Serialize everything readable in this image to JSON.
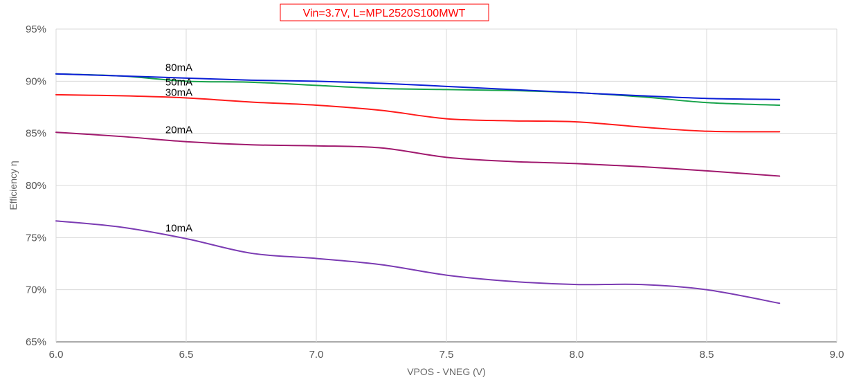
{
  "chart_data": {
    "type": "line",
    "title": "Vin=3.7V, L=MPL2520S100MWT",
    "title_color": "#ff0000",
    "xlabel": "VPOS - VNEG (V)",
    "ylabel": "Efficiency η",
    "xlim": [
      6.0,
      9.0
    ],
    "ylim": [
      65,
      95
    ],
    "x_ticks": [
      "6.0",
      "6.5",
      "7.0",
      "7.5",
      "8.0",
      "8.5",
      "9.0"
    ],
    "y_ticks": [
      "65%",
      "70%",
      "75%",
      "80%",
      "85%",
      "90%",
      "95%"
    ],
    "grid": true,
    "legend": "inline labels",
    "series": [
      {
        "name": "80mA",
        "color": "#0b1fd6",
        "x": [
          6.0,
          6.25,
          6.5,
          6.75,
          7.0,
          7.25,
          7.5,
          7.75,
          8.0,
          8.25,
          8.5,
          8.78
        ],
        "y": [
          90.7,
          90.5,
          90.3,
          90.1,
          90.0,
          89.8,
          89.5,
          89.2,
          88.9,
          88.6,
          88.35,
          88.25
        ]
      },
      {
        "name": "50mA",
        "color": "#17a34a",
        "x": [
          6.0,
          6.25,
          6.5,
          6.75,
          7.0,
          7.25,
          7.5,
          7.75,
          8.0,
          8.25,
          8.5,
          8.78
        ],
        "y": [
          90.7,
          90.5,
          90.0,
          89.9,
          89.6,
          89.3,
          89.2,
          89.1,
          88.9,
          88.5,
          87.95,
          87.7
        ]
      },
      {
        "name": "30mA",
        "color": "#ff1a1a",
        "x": [
          6.0,
          6.25,
          6.5,
          6.75,
          7.0,
          7.25,
          7.5,
          7.75,
          8.0,
          8.25,
          8.5,
          8.78
        ],
        "y": [
          88.7,
          88.6,
          88.4,
          88.0,
          87.7,
          87.2,
          86.4,
          86.2,
          86.1,
          85.6,
          85.2,
          85.15
        ]
      },
      {
        "name": "20mA",
        "color": "#a0196e",
        "x": [
          6.0,
          6.25,
          6.5,
          6.75,
          7.0,
          7.25,
          7.5,
          7.75,
          8.0,
          8.25,
          8.5,
          8.78
        ],
        "y": [
          85.1,
          84.7,
          84.2,
          83.9,
          83.8,
          83.6,
          82.7,
          82.3,
          82.1,
          81.8,
          81.4,
          80.9
        ]
      },
      {
        "name": "10mA",
        "color": "#7b3bb3",
        "x": [
          6.0,
          6.25,
          6.5,
          6.75,
          7.0,
          7.25,
          7.5,
          7.75,
          8.0,
          8.25,
          8.5,
          8.78
        ],
        "y": [
          76.6,
          76.0,
          74.9,
          73.5,
          73.0,
          72.4,
          71.4,
          70.8,
          70.5,
          70.5,
          70.0,
          68.7
        ]
      }
    ],
    "series_labels": [
      {
        "text": "80mA",
        "x": 6.42,
        "y": 91.0
      },
      {
        "text": "50mA",
        "x": 6.42,
        "y": 89.6
      },
      {
        "text": "30mA",
        "x": 6.42,
        "y": 88.6
      },
      {
        "text": "20mA",
        "x": 6.42,
        "y": 85.0
      },
      {
        "text": "10mA",
        "x": 6.42,
        "y": 75.6
      }
    ]
  }
}
